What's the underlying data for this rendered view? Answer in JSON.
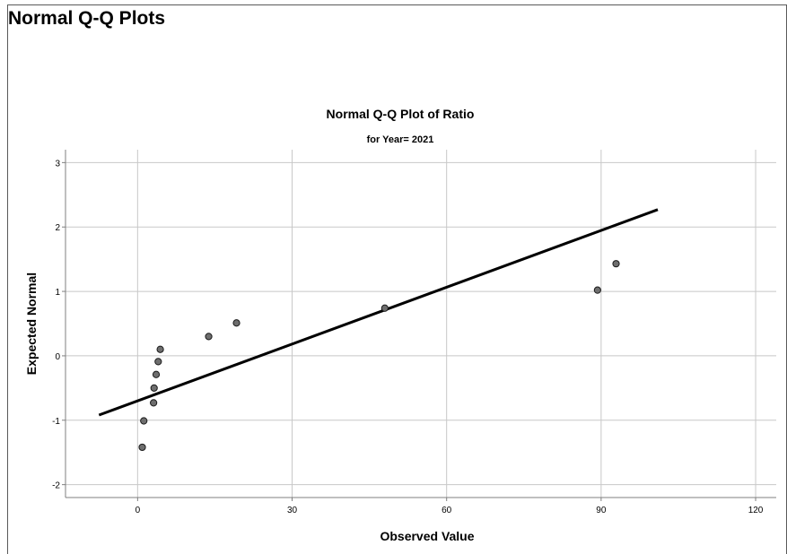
{
  "page": {
    "section_title": "Normal Q-Q Plots"
  },
  "chart_data": {
    "type": "scatter",
    "title": "Normal Q-Q Plot of Ratio",
    "subtitle": "for Year= 2021",
    "xlabel": "Observed Value",
    "ylabel": "Expected Normal",
    "xlim": [
      -14,
      124
    ],
    "ylim": [
      -2.2,
      3.2
    ],
    "x_ticks": [
      0,
      30,
      60,
      90,
      120
    ],
    "y_ticks": [
      -2,
      -1,
      0,
      1,
      2,
      3
    ],
    "grid": true,
    "point_color": "#6e6e6e",
    "points": [
      {
        "x": 0.9,
        "y": -1.42
      },
      {
        "x": 1.2,
        "y": -1.01
      },
      {
        "x": 3.1,
        "y": -0.73
      },
      {
        "x": 3.2,
        "y": -0.5
      },
      {
        "x": 3.6,
        "y": -0.29
      },
      {
        "x": 4.0,
        "y": -0.09
      },
      {
        "x": 4.4,
        "y": 0.1
      },
      {
        "x": 13.8,
        "y": 0.3
      },
      {
        "x": 19.2,
        "y": 0.51
      },
      {
        "x": 48.0,
        "y": 0.74
      },
      {
        "x": 89.3,
        "y": 1.02
      },
      {
        "x": 92.9,
        "y": 1.43
      }
    ],
    "reference_line": {
      "x": [
        -7.5,
        101
      ],
      "y": [
        -0.92,
        2.27
      ]
    }
  }
}
